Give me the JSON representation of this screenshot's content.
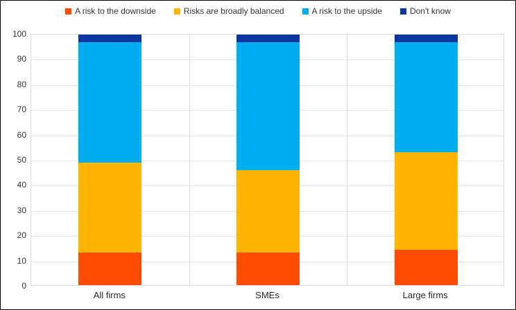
{
  "chart_data": {
    "type": "bar",
    "stacked": true,
    "title": "",
    "xlabel": "",
    "ylabel": "",
    "categories": [
      "All firms",
      "SMEs",
      "Large firms"
    ],
    "series": [
      {
        "name": "A risk to the downside",
        "color": "#FF4C00",
        "values": [
          13,
          13,
          14
        ]
      },
      {
        "name": "Risks are broadly balanced",
        "color": "#FFB400",
        "values": [
          36,
          33,
          39
        ]
      },
      {
        "name": "A risk to the upside",
        "color": "#00AEEF",
        "values": [
          48,
          51,
          44
        ]
      },
      {
        "name": "Don't know",
        "color": "#0B35A0",
        "values": [
          3,
          3,
          3
        ]
      }
    ],
    "ylim": [
      0,
      100
    ],
    "ytick_step": 10,
    "yticks": [
      0,
      10,
      20,
      30,
      40,
      50,
      60,
      70,
      80,
      90,
      100
    ],
    "grid": true,
    "legend_position": "top"
  },
  "colors": {
    "gridline": "#E3E3E3",
    "plot_border": "#D9D9D9",
    "frame_border": "#000000",
    "tick_text": "#333333",
    "category_text": "#262626",
    "background": "#FFFFFF"
  }
}
